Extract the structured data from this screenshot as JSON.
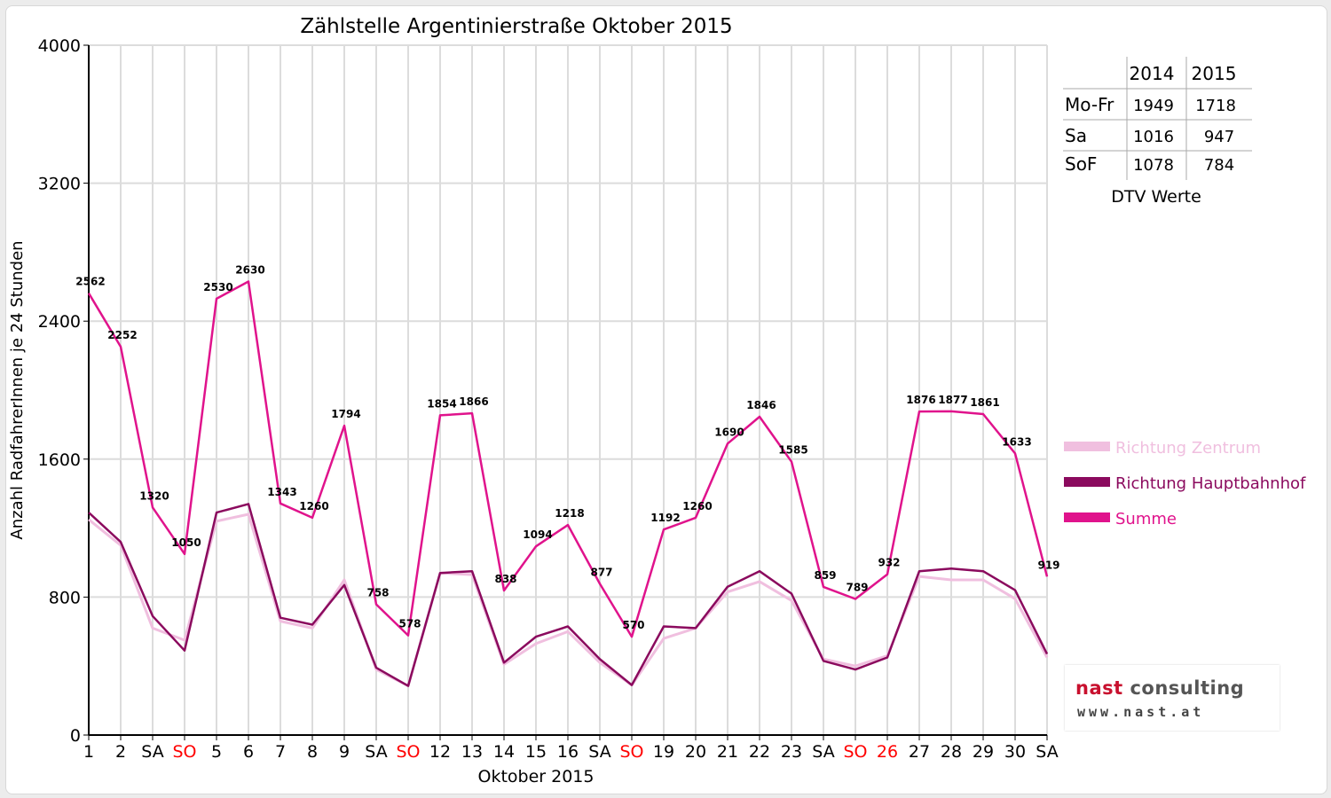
{
  "chart_data": {
    "type": "line",
    "title": "Zählstelle Argentinierstraße Oktober 2015",
    "xlabel": "Oktober 2015",
    "ylabel": "Anzahl RadfahrerInnen je 24 Stunden",
    "ylim": [
      0,
      4000
    ],
    "yticks": [
      0,
      800,
      1600,
      2400,
      3200,
      4000
    ],
    "grid": true,
    "legend_position": "right",
    "categories": [
      "1",
      "2",
      "SA",
      "SO",
      "5",
      "6",
      "7",
      "8",
      "9",
      "SA",
      "SO",
      "12",
      "13",
      "14",
      "15",
      "16",
      "SA",
      "SO",
      "19",
      "20",
      "21",
      "22",
      "23",
      "SA",
      "SO",
      "26",
      "27",
      "28",
      "29",
      "30",
      "SA"
    ],
    "red_categories": [
      3,
      10,
      17,
      24,
      25
    ],
    "series": [
      {
        "name": "Richtung Zentrum",
        "color": "#f0bfdf",
        "values": [
          1250,
          1100,
          620,
          550,
          1240,
          1280,
          660,
          620,
          900,
          380,
          285,
          940,
          930,
          410,
          530,
          600,
          420,
          290,
          560,
          620,
          830,
          890,
          780,
          440,
          400,
          460,
          920,
          900,
          900,
          790,
          450
        ]
      },
      {
        "name": "Richtung Hauptbahnhof",
        "color": "#8b0a5e",
        "values": [
          1290,
          1120,
          690,
          490,
          1290,
          1340,
          680,
          640,
          870,
          390,
          285,
          940,
          950,
          420,
          570,
          630,
          440,
          290,
          630,
          620,
          860,
          950,
          820,
          430,
          380,
          450,
          950,
          965,
          950,
          840,
          470
        ]
      },
      {
        "name": "Summe",
        "color": "#e0138c",
        "values": [
          2562,
          2252,
          1320,
          1050,
          2530,
          2630,
          1343,
          1260,
          1794,
          758,
          578,
          1854,
          1866,
          838,
          1094,
          1218,
          877,
          570,
          1192,
          1260,
          1690,
          1846,
          1585,
          859,
          789,
          932,
          1876,
          1877,
          1861,
          1633,
          919
        ]
      }
    ],
    "data_labels": [
      "2562",
      "2252",
      "1320",
      "1050",
      "2530",
      "2630",
      "1343",
      "1260",
      "1794",
      "758",
      "578",
      "1854",
      "1866",
      "838",
      "1094",
      "1218",
      "877",
      "570",
      "1192",
      "1260",
      "1690",
      "1846",
      "1585",
      "859",
      "789",
      "932",
      "1876",
      "1877",
      "1861",
      "1633",
      "919"
    ]
  },
  "dtv_table": {
    "caption": "DTV Werte",
    "headers": [
      "",
      "2014",
      "2015"
    ],
    "rows": [
      {
        "label": "Mo-Fr",
        "v2014": "1949",
        "v2015": "1718"
      },
      {
        "label": "Sa",
        "v2014": "1016",
        "v2015": "947"
      },
      {
        "label": "SoF",
        "v2014": "1078",
        "v2015": "784"
      }
    ]
  },
  "logo": {
    "line1_a": "nast",
    "line1_b": " consulting",
    "line2": "www.nast.at"
  }
}
